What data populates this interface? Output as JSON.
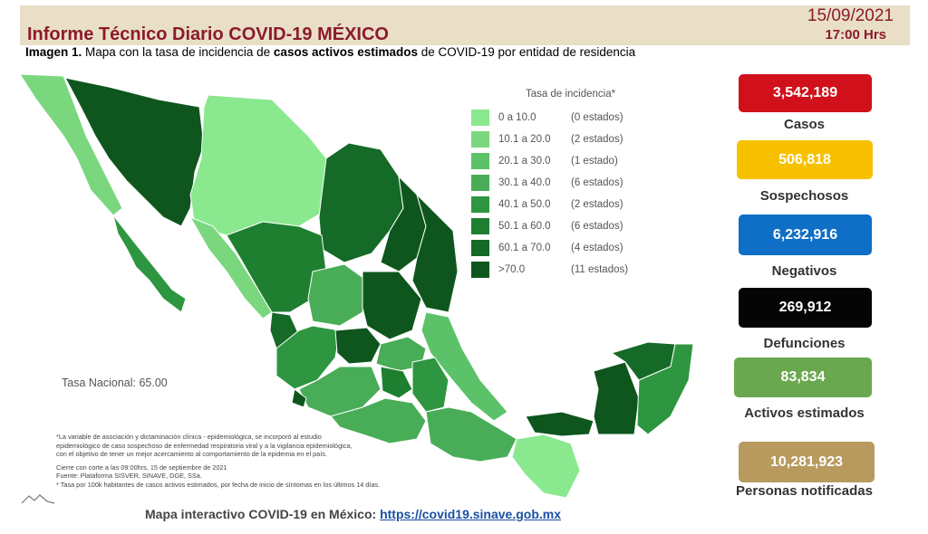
{
  "header": {
    "title": "Informe Técnico Diario COVID-19 MÉXICO",
    "date": "15/09/2021",
    "time": "17:00 Hrs"
  },
  "subtitle": {
    "prefix": "Imagen 1.",
    "text_before": " Mapa con la tasa de incidencia de ",
    "emphasis": "casos activos estimados",
    "text_after": " de COVID-19 por entidad de residencia"
  },
  "legend": {
    "title": "Tasa de incidencia*",
    "rows": [
      {
        "range": "0   a  10.0",
        "count": "(0 estados)",
        "color": "#8ae88e"
      },
      {
        "range": "10.1 a  20.0",
        "count": "(2 estados)",
        "color": "#7ad77e"
      },
      {
        "range": "20.1 a  30.0",
        "count": "(1 estado)",
        "color": "#5cc26a"
      },
      {
        "range": "30.1 a  40.0",
        "count": "(6 estados)",
        "color": "#48ad56"
      },
      {
        "range": "40.1 a  50.0",
        "count": "(2 estados)",
        "color": "#2e9640"
      },
      {
        "range": "50.1 a  60.0",
        "count": "(6 estados)",
        "color": "#1f7f31"
      },
      {
        "range": "60.1 a  70.0",
        "count": "(4 estados)",
        "color": "#156a27"
      },
      {
        "range": ">70.0",
        "count": "(11 estados)",
        "color": "#0e561d"
      }
    ]
  },
  "national_rate": "Tasa Nacional: 65.00",
  "notes": [
    "*La variable de asociación y dictaminación clínica - epidemiológica, se incorporó al estudio",
    "epidemiológico de caso sospechoso de enfermedad respiratoria viral y a la vigilancia epidemiológica,",
    "con el objetivo de tener un mejor acercamiento al comportamiento de la epidemia en el país.",
    "",
    "Cierre con corte a las 09:00hrs, 15 de septiembre de 2021",
    "Fuente: Plataforma SISVER, SINAVE, DGE, SSa.",
    "* Tasa por 100k habitantes de casos activos estimados, por fecha de inicio de síntomas en los últimos 14 días."
  ],
  "footer": {
    "label": "Mapa interactivo COVID-19 en México: ",
    "link": "https://covid19.sinave.gob.mx"
  },
  "stats": [
    {
      "value": "3,542,189",
      "label": "Casos",
      "color": "#d0101a"
    },
    {
      "value": "506,818",
      "label": "Sospechosos",
      "color": "#f7c100"
    },
    {
      "value": "6,232,916",
      "label": "Negativos",
      "color": "#0f6fc6"
    },
    {
      "value": "269,912",
      "label": "Defunciones",
      "color": "#050505"
    },
    {
      "value": "83,834",
      "label": "Activos estimados",
      "color": "#6aa84f"
    },
    {
      "value": "10,281,923",
      "label": "Personas notificadas",
      "color": "#b89a5e"
    }
  ]
}
